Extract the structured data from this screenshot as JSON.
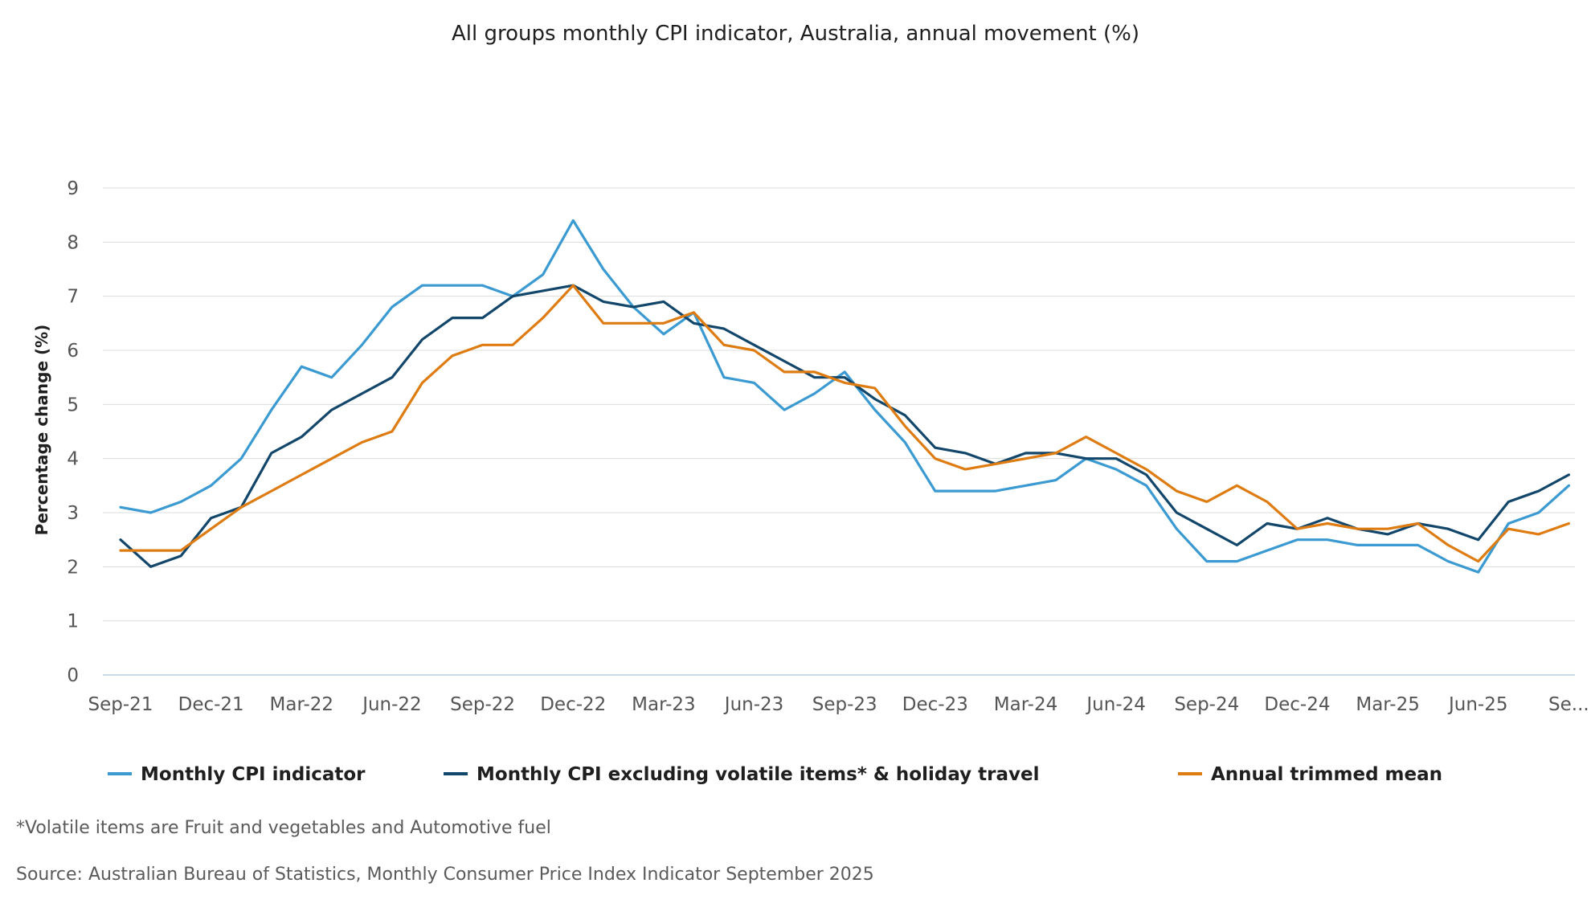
{
  "chart_data": {
    "type": "line",
    "title": "All groups monthly CPI indicator, Australia, annual movement (%)",
    "ylabel": "Percentage change (%)",
    "xlabel": "",
    "ylim": [
      0,
      9
    ],
    "yticks": [
      "0",
      "1",
      "2",
      "3",
      "4",
      "5",
      "6",
      "7",
      "8",
      "9"
    ],
    "xtick_labels": [
      "Sep-21",
      "Dec-21",
      "Mar-22",
      "Jun-22",
      "Sep-22",
      "Dec-22",
      "Mar-23",
      "Jun-23",
      "Sep-23",
      "Dec-23",
      "Mar-24",
      "Jun-24",
      "Sep-24",
      "Dec-24",
      "Mar-25",
      "Jun-25",
      "Se..."
    ],
    "grid": true,
    "legend_position": "bottom",
    "x": [
      "Sep-21",
      "Oct-21",
      "Nov-21",
      "Dec-21",
      "Jan-22",
      "Feb-22",
      "Mar-22",
      "Apr-22",
      "May-22",
      "Jun-22",
      "Jul-22",
      "Aug-22",
      "Sep-22",
      "Oct-22",
      "Nov-22",
      "Dec-22",
      "Jan-23",
      "Feb-23",
      "Mar-23",
      "Apr-23",
      "May-23",
      "Jun-23",
      "Jul-23",
      "Aug-23",
      "Sep-23",
      "Oct-23",
      "Nov-23",
      "Dec-23",
      "Jan-24",
      "Feb-24",
      "Mar-24",
      "Apr-24",
      "May-24",
      "Jun-24",
      "Jul-24",
      "Aug-24",
      "Sep-24",
      "Oct-24",
      "Nov-24",
      "Dec-24",
      "Jan-25",
      "Feb-25",
      "Mar-25",
      "Apr-25",
      "May-25",
      "Jun-25",
      "Jul-25",
      "Aug-25",
      "Sep-25"
    ],
    "series": [
      {
        "name": "Monthly CPI indicator",
        "color": "#3a9ad1",
        "values": [
          3.1,
          3.0,
          3.2,
          3.5,
          4.0,
          4.9,
          5.7,
          5.5,
          6.1,
          6.8,
          7.2,
          7.2,
          7.2,
          7.0,
          7.4,
          8.4,
          7.5,
          6.8,
          6.3,
          6.7,
          5.5,
          5.4,
          4.9,
          5.2,
          5.6,
          4.9,
          4.3,
          3.4,
          3.4,
          3.4,
          3.5,
          3.6,
          4.0,
          3.8,
          3.5,
          2.7,
          2.1,
          2.1,
          2.3,
          2.5,
          2.5,
          2.4,
          2.4,
          2.4,
          2.1,
          1.9,
          2.8,
          3.0,
          3.5
        ]
      },
      {
        "name": "Monthly CPI excluding volatile items* & holiday travel",
        "color": "#12466b",
        "values": [
          2.5,
          2.0,
          2.2,
          2.9,
          3.1,
          4.1,
          4.4,
          4.9,
          5.2,
          5.5,
          6.2,
          6.6,
          6.6,
          7.0,
          7.1,
          7.2,
          6.9,
          6.8,
          6.9,
          6.5,
          6.4,
          6.1,
          5.8,
          5.5,
          5.5,
          5.1,
          4.8,
          4.2,
          4.1,
          3.9,
          4.1,
          4.1,
          4.0,
          4.0,
          3.7,
          3.0,
          2.7,
          2.4,
          2.8,
          2.7,
          2.9,
          2.7,
          2.6,
          2.8,
          2.7,
          2.5,
          3.2,
          3.4,
          3.7
        ]
      },
      {
        "name": "Annual trimmed mean",
        "color": "#de7c12",
        "values": [
          2.3,
          2.3,
          2.3,
          2.7,
          3.1,
          3.4,
          3.7,
          4.0,
          4.3,
          4.5,
          5.4,
          5.9,
          6.1,
          6.1,
          6.6,
          7.2,
          6.5,
          6.5,
          6.5,
          6.7,
          6.1,
          6.0,
          5.6,
          5.6,
          5.4,
          5.3,
          4.6,
          4.0,
          3.8,
          3.9,
          4.0,
          4.1,
          4.4,
          4.1,
          3.8,
          3.4,
          3.2,
          3.5,
          3.2,
          2.7,
          2.8,
          2.7,
          2.7,
          2.8,
          2.4,
          2.1,
          2.7,
          2.6,
          2.8
        ]
      }
    ]
  },
  "footnote": "*Volatile items are Fruit and vegetables and Automotive fuel",
  "source": "Source: Australian Bureau of Statistics, Monthly Consumer Price Index Indicator September 2025"
}
